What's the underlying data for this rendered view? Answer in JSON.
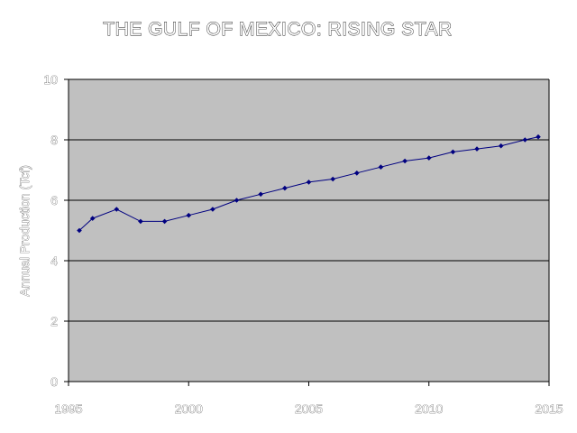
{
  "chart_data": {
    "type": "line",
    "title": "THE GULF OF MEXICO: RISING STAR",
    "xlabel": "",
    "ylabel": "Annual Production (Tcf)",
    "xlim": [
      1995,
      2015
    ],
    "ylim": [
      0,
      10
    ],
    "x_ticks": [
      "1995",
      "2000",
      "2005",
      "2010",
      "2015"
    ],
    "y_ticks": [
      "0",
      "2",
      "4",
      "6",
      "8",
      "10"
    ],
    "grid": true,
    "legend": "none",
    "series": [
      {
        "x": [
          1995,
          1996,
          1997,
          1998,
          1999,
          2000,
          2001,
          2002,
          2003,
          2004,
          2005,
          2006,
          2007,
          2008,
          2009,
          2010,
          2011,
          2012,
          2013,
          2014,
          2015
        ],
        "values": [
          5.0,
          5.4,
          5.7,
          5.3,
          5.3,
          5.5,
          5.7,
          6.0,
          6.2,
          6.4,
          6.6,
          6.7,
          6.9,
          7.1,
          7.3,
          7.4,
          7.6,
          7.7,
          7.8,
          8.0,
          8.1
        ]
      }
    ],
    "colors": {
      "plot_background": "#c0c0c0",
      "gridline": "#000000",
      "series_line": "#000080",
      "series_marker": "#000080"
    }
  }
}
